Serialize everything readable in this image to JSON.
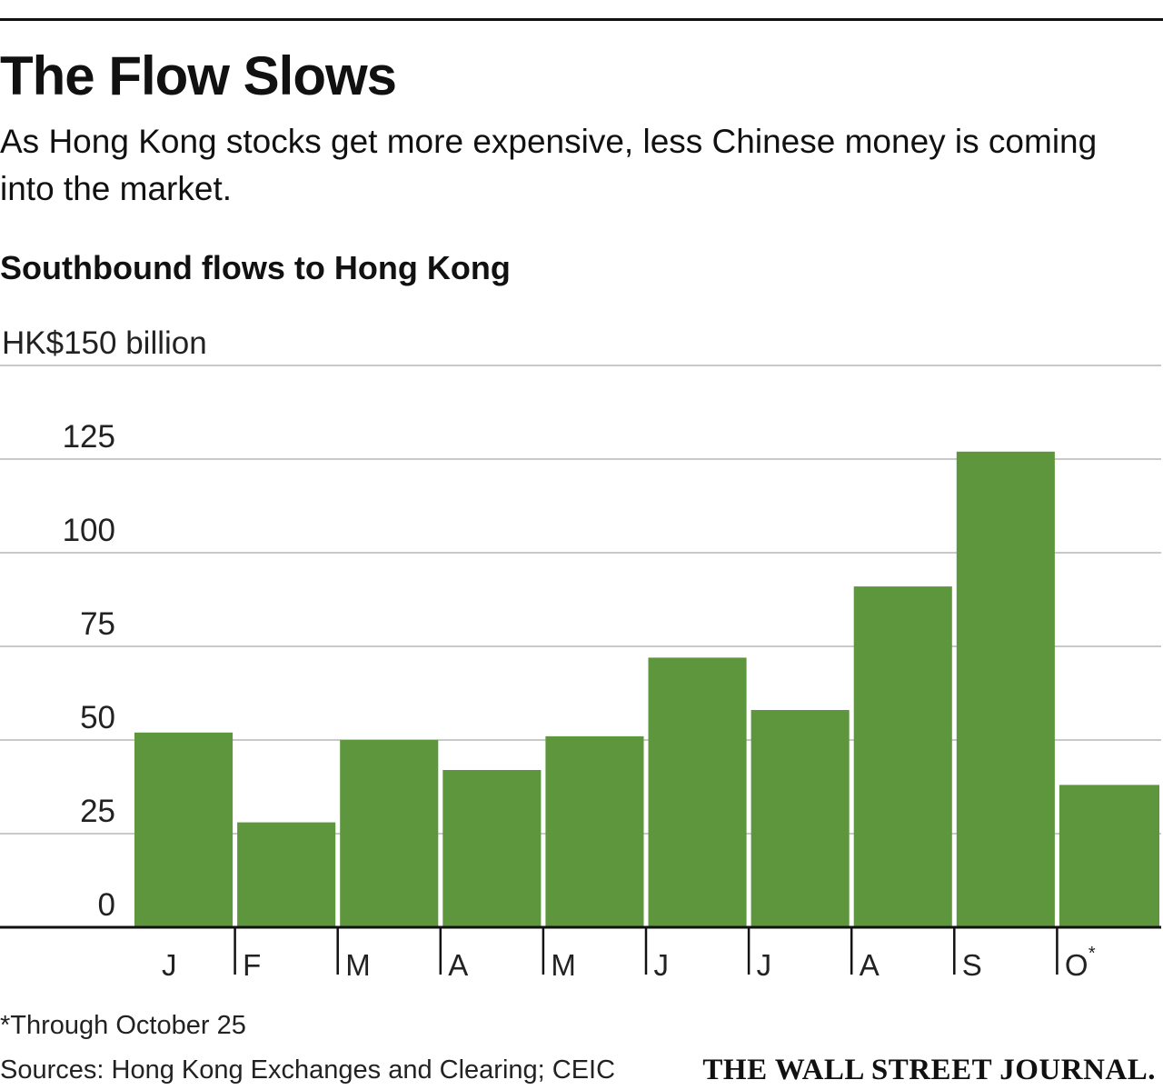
{
  "header": {
    "title": "The Flow Slows",
    "subtitle": "As Hong Kong stocks get more expensive, less Chinese money is coming into the market."
  },
  "chart_heading": "Southbound flows to Hong Kong",
  "chart_data": {
    "type": "bar",
    "title": "Southbound flows to Hong Kong",
    "ylabel": "HK$150 billion",
    "ylim": [
      0,
      150
    ],
    "yticks": [
      0,
      25,
      50,
      75,
      100,
      125,
      150
    ],
    "ytick_labels": [
      "0",
      "25",
      "50",
      "75",
      "100",
      "125",
      "HK$150 billion"
    ],
    "categories": [
      "J",
      "F",
      "M",
      "A",
      "M",
      "J",
      "J",
      "A",
      "S",
      "O"
    ],
    "category_marks": [
      "",
      "",
      "",
      "",
      "",
      "",
      "",
      "",
      "",
      "*"
    ],
    "values": [
      52,
      28,
      50,
      42,
      51,
      72,
      58,
      91,
      127,
      38
    ],
    "grid": true,
    "legend": "none",
    "bar_color": "#5e963e",
    "grid_color": "#c9c9c9",
    "axis_color": "#111111"
  },
  "footer": {
    "footnote": "*Through October 25",
    "sources": "Sources: Hong Kong Exchanges and Clearing; CEIC",
    "brand": "THE WALL STREET JOURNAL."
  }
}
